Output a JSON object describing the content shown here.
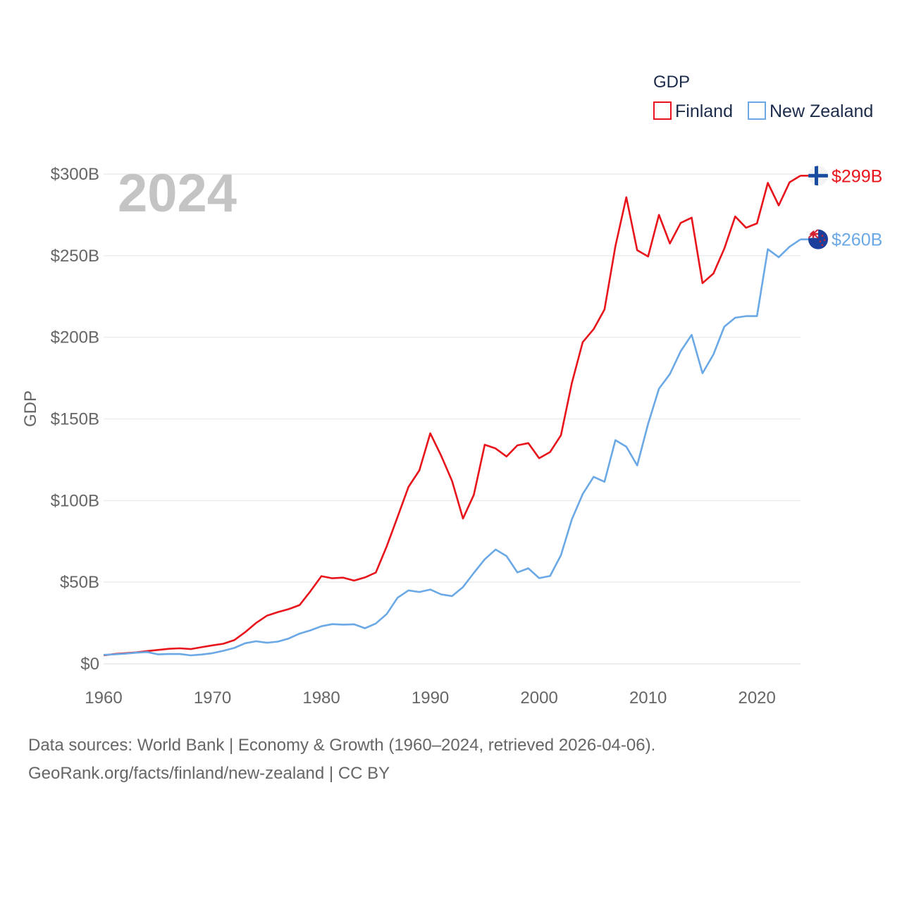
{
  "chart_data": {
    "type": "line",
    "title": "",
    "watermark_year": "2024",
    "ylabel": "GDP",
    "xlabel": "",
    "legend": {
      "title": "GDP",
      "position": "top-right"
    },
    "x_ticks": [
      1960,
      1970,
      1980,
      1990,
      2000,
      2010,
      2020
    ],
    "x_tick_labels": [
      "1960",
      "1970",
      "1980",
      "1990",
      "2000",
      "2010",
      "2020"
    ],
    "y_ticks": [
      0,
      50,
      100,
      150,
      200,
      250,
      300
    ],
    "y_tick_labels": [
      "$0",
      "$50B",
      "$100B",
      "$150B",
      "$200B",
      "$250B",
      "$300B"
    ],
    "xlim": [
      1960,
      2024
    ],
    "ylim": [
      0,
      300
    ],
    "units": "billion USD",
    "grid": true,
    "series": [
      {
        "name": "Finland",
        "color": "#e8141b",
        "end_label": "$299B",
        "flag": "finland-flag-icon",
        "x": [
          1960,
          1961,
          1962,
          1963,
          1964,
          1965,
          1966,
          1967,
          1968,
          1969,
          1970,
          1971,
          1972,
          1973,
          1974,
          1975,
          1976,
          1977,
          1978,
          1979,
          1980,
          1981,
          1982,
          1983,
          1984,
          1985,
          1986,
          1987,
          1988,
          1989,
          1990,
          1991,
          1992,
          1993,
          1994,
          1995,
          1996,
          1997,
          1998,
          1999,
          2000,
          2001,
          2002,
          2003,
          2004,
          2005,
          2006,
          2007,
          2008,
          2009,
          2010,
          2011,
          2012,
          2013,
          2014,
          2015,
          2016,
          2017,
          2018,
          2019,
          2020,
          2021,
          2022,
          2023,
          2024
        ],
        "values": [
          5.2,
          6.0,
          6.5,
          7.0,
          7.8,
          8.5,
          9.2,
          9.5,
          9.0,
          10.2,
          11.3,
          12.3,
          14.5,
          19.4,
          25.0,
          29.5,
          31.7,
          33.5,
          36.0,
          44.5,
          53.7,
          52.4,
          52.8,
          51.0,
          52.9,
          55.9,
          72.0,
          90.0,
          108.4,
          118.5,
          141.2,
          127.5,
          112.0,
          89.0,
          103.5,
          134.2,
          131.9,
          127.0,
          133.8,
          135.2,
          125.9,
          129.7,
          140.0,
          172.0,
          197.0,
          205.0,
          217.0,
          255.8,
          285.8,
          253.4,
          249.5,
          275.0,
          257.5,
          270.1,
          273.3,
          233.2,
          239.1,
          254.3,
          274.0,
          267.1,
          269.8,
          294.6,
          280.8,
          295.0,
          299.0
        ]
      },
      {
        "name": "New Zealand",
        "color": "#6aa8e6",
        "end_label": "$260B",
        "flag": "new-zealand-flag-icon",
        "x": [
          1960,
          1961,
          1962,
          1963,
          1964,
          1965,
          1966,
          1967,
          1968,
          1969,
          1970,
          1971,
          1972,
          1973,
          1974,
          1975,
          1976,
          1977,
          1978,
          1979,
          1980,
          1981,
          1982,
          1983,
          1984,
          1985,
          1986,
          1987,
          1988,
          1989,
          1990,
          1991,
          1992,
          1993,
          1994,
          1995,
          1996,
          1997,
          1998,
          1999,
          2000,
          2001,
          2002,
          2003,
          2004,
          2005,
          2006,
          2007,
          2008,
          2009,
          2010,
          2011,
          2012,
          2013,
          2014,
          2015,
          2016,
          2017,
          2018,
          2019,
          2020,
          2021,
          2022,
          2023,
          2024
        ],
        "values": [
          5.5,
          5.8,
          6.2,
          6.8,
          7.2,
          5.8,
          6.0,
          6.0,
          5.2,
          5.7,
          6.5,
          8.0,
          9.7,
          12.6,
          13.8,
          12.9,
          13.6,
          15.5,
          18.5,
          20.5,
          23.0,
          24.3,
          24.0,
          24.2,
          21.8,
          24.7,
          30.5,
          40.5,
          45.0,
          44.0,
          45.5,
          42.5,
          41.5,
          47.0,
          55.7,
          64.0,
          70.0,
          66.0,
          56.0,
          58.5,
          52.5,
          53.8,
          66.5,
          88.5,
          104.0,
          114.5,
          111.5,
          137.0,
          133.0,
          121.5,
          147.0,
          168.5,
          177.5,
          191.5,
          201.5,
          178.0,
          189.5,
          206.5,
          212.0,
          213.0,
          213.0,
          254.0,
          249.0,
          255.5,
          260.0
        ]
      }
    ]
  },
  "source": {
    "line1": "Data sources: World Bank | Economy & Growth (1960–2024, retrieved 2026-04-06).",
    "line2": "GeoRank.org/facts/finland/new-zealand | CC BY"
  }
}
